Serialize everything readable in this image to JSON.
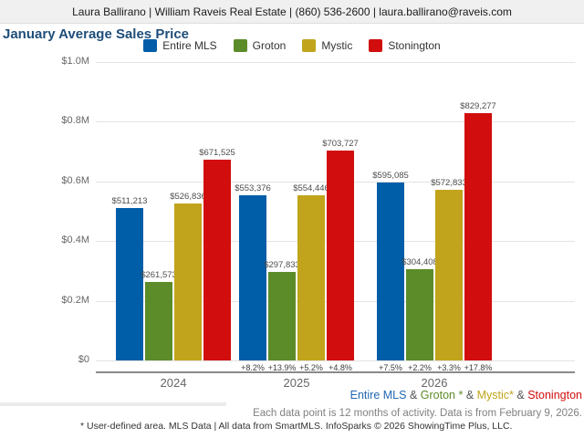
{
  "header": {
    "contact_line": "Laura Ballirano | William Raveis Real Estate | (860) 536-2600 | laura.ballirano@raveis.com"
  },
  "title": "January Average Sales Price",
  "chart_data": {
    "type": "bar",
    "title": "January Average Sales Price",
    "categories": [
      "2024",
      "2025",
      "2026"
    ],
    "series": [
      {
        "name": "Entire MLS",
        "color": "#005da8",
        "values": [
          511213,
          553376,
          595085
        ],
        "pct_change": [
          null,
          "+8.2%",
          "+7.5%"
        ]
      },
      {
        "name": "Groton",
        "color": "#5c8b29",
        "values": [
          261573,
          297833,
          304408
        ],
        "pct_change": [
          null,
          "+13.9%",
          "+2.2%"
        ]
      },
      {
        "name": "Mystic",
        "color": "#c1a41b",
        "values": [
          526836,
          554446,
          572833
        ],
        "pct_change": [
          null,
          "+5.2%",
          "+3.3%"
        ]
      },
      {
        "name": "Stonington",
        "color": "#d20d0d",
        "values": [
          671525,
          703727,
          829277
        ],
        "pct_change": [
          null,
          "+4.8%",
          "+17.8%"
        ]
      }
    ],
    "ylim": [
      0,
      1000000
    ],
    "yticks": [
      "$0",
      "$0.2M",
      "$0.4M",
      "$0.6M",
      "$0.8M",
      "$1.0M"
    ],
    "grid": true,
    "legend_position": "top",
    "value_label_prefix": "$",
    "group_lefts": [
      22,
      157,
      308
    ]
  },
  "footer": {
    "series_line": [
      {
        "text": "Entire MLS",
        "color": "#2268b2"
      },
      {
        "text": " & ",
        "color": "#555555"
      },
      {
        "text": "Groton *",
        "color": "#5c8b29"
      },
      {
        "text": " & ",
        "color": "#555555"
      },
      {
        "text": "Mystic*",
        "color": "#c1a41b"
      },
      {
        "text": " & ",
        "color": "#555555"
      },
      {
        "text": "Stonington",
        "color": "#d20d0d"
      }
    ],
    "data_note": "Each data point is 12 months of activity. Data is from February 9, 2026.",
    "disclaimer": "* User-defined area. MLS Data | All data from SmartMLS. InfoSparks © 2026 ShowingTime Plus, LLC."
  }
}
